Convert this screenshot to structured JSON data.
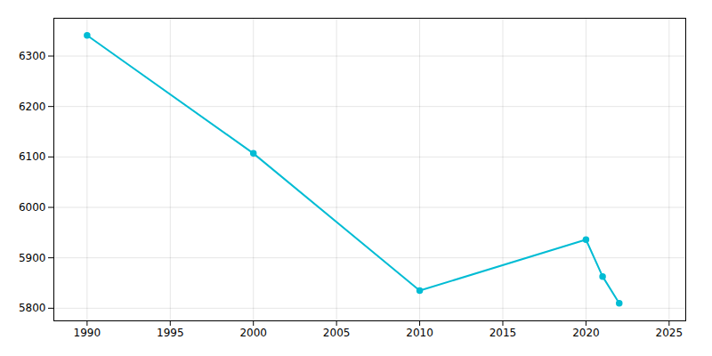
{
  "chart_data": {
    "type": "line",
    "x": [
      1990,
      2000,
      2010,
      2020,
      2021,
      2022
    ],
    "values": [
      6341,
      6107,
      5835,
      5936,
      5863,
      5810
    ],
    "color": "#00bcd4",
    "marker": "o",
    "xlim": [
      1988,
      2026
    ],
    "ylim": [
      5775,
      6375
    ],
    "xticks": [
      1990,
      1995,
      2000,
      2005,
      2010,
      2015,
      2020,
      2025
    ],
    "yticks": [
      5800,
      5900,
      6000,
      6100,
      6200,
      6300
    ],
    "grid": true
  }
}
